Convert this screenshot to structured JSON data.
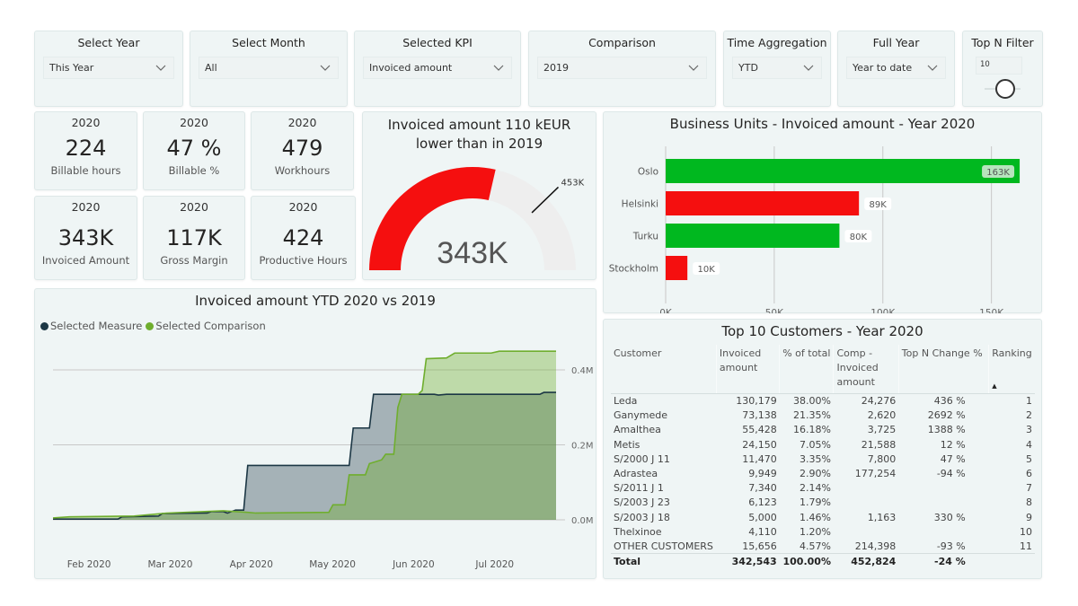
{
  "slicers": [
    {
      "title": "Select Year",
      "value": "This Year"
    },
    {
      "title": "Select Month",
      "value": "All"
    },
    {
      "title": "Selected KPI",
      "value": "Invoiced amount"
    },
    {
      "title": "Comparison",
      "value": "2019"
    },
    {
      "title": "Time Aggregation",
      "value": "YTD"
    },
    {
      "title": "Full Year",
      "value": "Year to date"
    }
  ],
  "topn": {
    "title": "Top N Filter",
    "value": "10"
  },
  "kpis": [
    {
      "year": "2020",
      "value": "224",
      "label": "Billable hours"
    },
    {
      "year": "2020",
      "value": "47 %",
      "label": "Billable %"
    },
    {
      "year": "2020",
      "value": "479",
      "label": "Workhours"
    },
    {
      "year": "2020",
      "value": "343K",
      "label": "Invoiced Amount"
    },
    {
      "year": "2020",
      "value": "117K",
      "label": "Gross Margin"
    },
    {
      "year": "2020",
      "value": "424",
      "label": "Productive Hours"
    }
  ],
  "gauge": {
    "title": "Invoiced amount 110 kEUR lower than in 2019",
    "value": 343,
    "value_label": "343K",
    "target": 453,
    "target_label": "453K",
    "fill_color": "#f50f0f"
  },
  "chart_data": [
    {
      "type": "bar",
      "orientation": "horizontal",
      "title": "Business Units - Invoiced amount - Year 2020",
      "categories": [
        "Oslo",
        "Helsinki",
        "Turku",
        "Stockholm"
      ],
      "values": [
        163,
        89,
        80,
        10
      ],
      "value_labels": [
        "163K",
        "89K",
        "80K",
        "10K"
      ],
      "colors": [
        "#00b81f",
        "#f50f0f",
        "#00b81f",
        "#f50f0f"
      ],
      "xticks": [
        "0K",
        "50K",
        "100K",
        "150K"
      ],
      "xlim": [
        0,
        170
      ],
      "units": "K",
      "grid": true
    },
    {
      "type": "area",
      "title": "Invoiced amount YTD 2020 vs 2019",
      "legend": [
        {
          "name": "Selected Measure",
          "color": "#1c3745"
        },
        {
          "name": "Selected Comparison",
          "color": "#6fae2e"
        }
      ],
      "legend_position": "top-left",
      "xticks": [
        "Feb 2020",
        "Mar 2020",
        "Apr 2020",
        "May 2020",
        "Jun 2020",
        "Jul 2020"
      ],
      "yticks": [
        "0.0M",
        "0.2M",
        "0.4M"
      ],
      "ylim": [
        0,
        0.46
      ],
      "x_range_months": [
        0.6,
        6.8
      ],
      "series": [
        {
          "name": "Selected Measure",
          "points": [
            [
              0.6,
              0.002
            ],
            [
              1.4,
              0.002
            ],
            [
              1.45,
              0.008
            ],
            [
              1.9,
              0.01
            ],
            [
              1.95,
              0.017
            ],
            [
              2.5,
              0.018
            ],
            [
              2.55,
              0.022
            ],
            [
              2.7,
              0.022
            ],
            [
              2.75,
              0.018
            ],
            [
              2.85,
              0.026
            ],
            [
              2.95,
              0.026
            ],
            [
              3.0,
              0.145
            ],
            [
              4.25,
              0.145
            ],
            [
              4.3,
              0.245
            ],
            [
              4.5,
              0.245
            ],
            [
              4.55,
              0.335
            ],
            [
              5.3,
              0.335
            ],
            [
              5.35,
              0.333
            ],
            [
              5.45,
              0.335
            ],
            [
              6.6,
              0.335
            ],
            [
              6.65,
              0.34
            ],
            [
              6.8,
              0.34
            ]
          ]
        },
        {
          "name": "Selected Comparison",
          "points": [
            [
              0.6,
              0.005
            ],
            [
              0.8,
              0.008
            ],
            [
              1.6,
              0.01
            ],
            [
              2.0,
              0.018
            ],
            [
              2.7,
              0.024
            ],
            [
              3.0,
              0.02
            ],
            [
              3.1,
              0.018
            ],
            [
              4.0,
              0.02
            ],
            [
              4.05,
              0.04
            ],
            [
              4.2,
              0.04
            ],
            [
              4.25,
              0.12
            ],
            [
              4.45,
              0.12
            ],
            [
              4.5,
              0.15
            ],
            [
              4.65,
              0.16
            ],
            [
              4.7,
              0.175
            ],
            [
              4.8,
              0.175
            ],
            [
              4.85,
              0.3
            ],
            [
              4.9,
              0.335
            ],
            [
              5.1,
              0.335
            ],
            [
              5.15,
              0.345
            ],
            [
              5.2,
              0.43
            ],
            [
              5.45,
              0.432
            ],
            [
              5.55,
              0.445
            ],
            [
              6.0,
              0.445
            ],
            [
              6.1,
              0.45
            ],
            [
              6.8,
              0.45
            ]
          ]
        }
      ]
    },
    {
      "type": "table",
      "title": "Top 10 Customers - Year 2020",
      "columns": [
        "Customer",
        "Invoiced amount",
        "% of total",
        "Comp - Invoiced amount",
        "Top N Change %",
        "Ranking"
      ],
      "sort_indicator": "Ranking ascending",
      "rows": [
        [
          "Leda",
          "130,179",
          "38.00%",
          "24,276",
          "436 %",
          "1"
        ],
        [
          "Ganymede",
          "73,138",
          "21.35%",
          "2,620",
          "2692 %",
          "2"
        ],
        [
          "Amalthea",
          "55,428",
          "16.18%",
          "3,725",
          "1388 %",
          "3"
        ],
        [
          "Metis",
          "24,150",
          "7.05%",
          "21,588",
          "12 %",
          "4"
        ],
        [
          "S/2000 J 11",
          "11,470",
          "3.35%",
          "7,800",
          "47 %",
          "5"
        ],
        [
          "Adrastea",
          "9,949",
          "2.90%",
          "177,254",
          "-94 %",
          "6"
        ],
        [
          "S/2011 J 1",
          "7,340",
          "2.14%",
          "",
          "",
          "7"
        ],
        [
          "S/2003 J 23",
          "6,123",
          "1.79%",
          "",
          "",
          "8"
        ],
        [
          "S/2003 J 18",
          "5,000",
          "1.46%",
          "1,163",
          "330 %",
          "9"
        ],
        [
          "Thelxinoe",
          "4,110",
          "1.20%",
          "",
          "",
          "10"
        ],
        [
          "OTHER CUSTOMERS",
          "15,656",
          "4.57%",
          "214,398",
          "-93 %",
          "11"
        ]
      ],
      "total": [
        "Total",
        "342,543",
        "100.00%",
        "452,824",
        "-24 %",
        ""
      ]
    }
  ]
}
